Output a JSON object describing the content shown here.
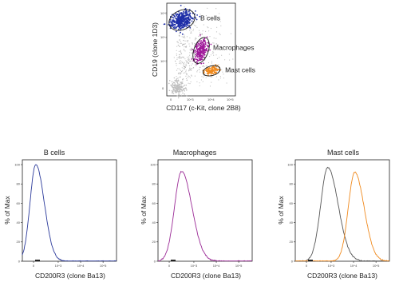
{
  "chart_data": [
    {
      "type": "scatter",
      "subtype": "flow-cytometry-dot-plot",
      "xlabel": "CD117 (c-Kit, clone 2B8)",
      "ylabel": "CD19 (clone 1D3)",
      "xscale": "log",
      "yscale": "log",
      "x_ticks": [
        "0",
        "10^3",
        "10^4",
        "10^5"
      ],
      "y_ticks": [
        "0",
        "10^3",
        "10^4",
        "10^5"
      ],
      "gates": [
        {
          "name": "B cells",
          "color": "#1f2fa8",
          "gate_color": "#1a1a1a",
          "x_center": 150,
          "y_center": 30000
        },
        {
          "name": "Macrophages",
          "color": "#a0189a",
          "gate_color": "#1a1a1a",
          "x_center": 1800,
          "y_center": 1700
        },
        {
          "name": "Mast cells",
          "color": "#f08a1e",
          "gate_color": "#1a1a1a",
          "x_center": 7000,
          "y_center": 250
        }
      ]
    },
    {
      "type": "line",
      "subtype": "histogram",
      "title": "B cells",
      "xlabel": "CD200R3 (clone Ba13)",
      "ylabel": "% of Max",
      "y_ticks": [
        "0",
        "20",
        "40",
        "60",
        "80",
        "100"
      ],
      "x_ticks": [
        "0",
        "10^3",
        "10^4",
        "10^5"
      ],
      "ylim": [
        0,
        100
      ],
      "series": [
        {
          "color": "#2b3a9b",
          "peak_x": 0.6,
          "peak_y": 100,
          "width": 0.45
        }
      ]
    },
    {
      "type": "line",
      "subtype": "histogram",
      "title": "Macrophages",
      "xlabel": "CD200R3 (clone Ba13)",
      "ylabel": "% of Max",
      "y_ticks": [
        "0",
        "20",
        "40",
        "60",
        "80",
        "100"
      ],
      "x_ticks": [
        "0",
        "10^3",
        "10^4",
        "10^5"
      ],
      "ylim": [
        0,
        100
      ],
      "series": [
        {
          "color": "#9b2a96",
          "peak_x": 1.05,
          "peak_y": 93,
          "width": 0.55
        }
      ]
    },
    {
      "type": "line",
      "subtype": "histogram",
      "title": "Mast cells",
      "xlabel": "CD200R3 (clone Ba13)",
      "ylabel": "% of Max",
      "y_ticks": [
        "0",
        "20",
        "40",
        "60",
        "80",
        "100"
      ],
      "x_ticks": [
        "0",
        "10^3",
        "10^4",
        "10^5"
      ],
      "ylim": [
        0,
        100
      ],
      "series": [
        {
          "color": "#555555",
          "peak_x": 1.45,
          "peak_y": 97,
          "width": 0.55
        },
        {
          "color": "#f08a1e",
          "peak_x": 2.65,
          "peak_y": 92,
          "width": 0.5
        }
      ]
    }
  ]
}
